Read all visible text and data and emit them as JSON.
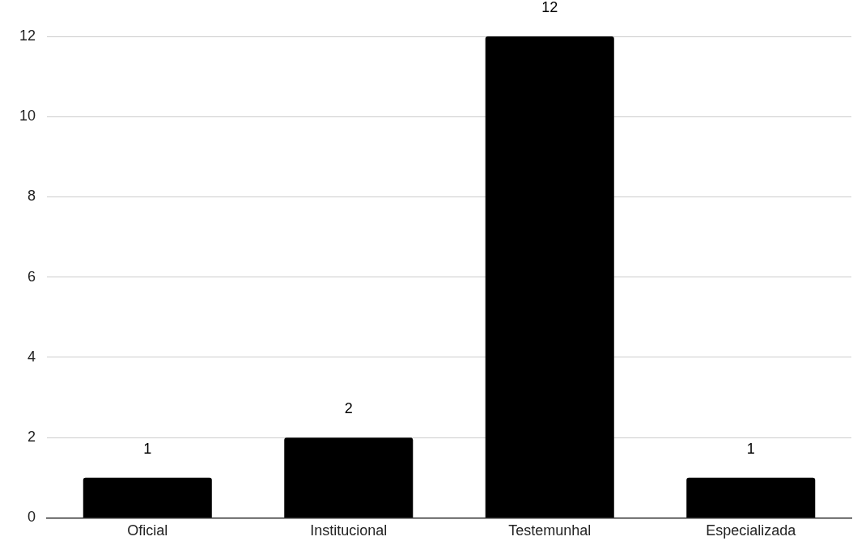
{
  "chart_data": {
    "type": "bar",
    "categories": [
      "Oficial",
      "Institucional",
      "Testemunhal",
      "Especializada"
    ],
    "values": [
      1,
      2,
      12,
      1
    ],
    "color": "#000000",
    "ylim": [
      0,
      12
    ],
    "yticks": [
      0,
      2,
      4,
      6,
      8,
      10,
      12
    ],
    "grid": "y",
    "data_labels": true,
    "legend": false
  }
}
